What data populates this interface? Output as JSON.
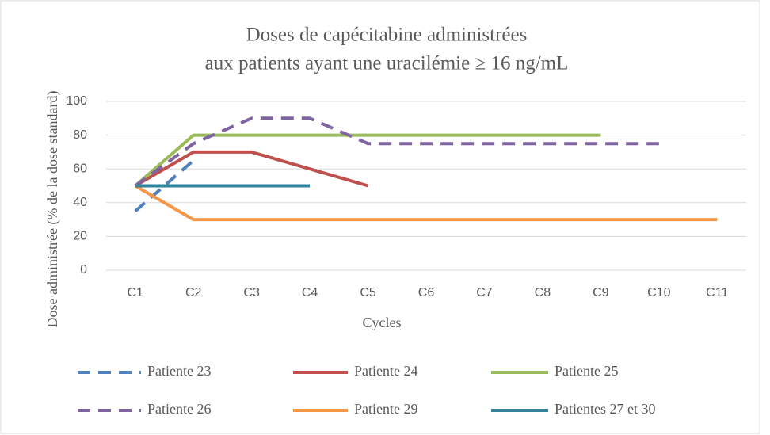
{
  "chart_data": {
    "type": "line",
    "title": [
      "Doses de capécitabine administrées",
      "aux patients ayant une uracilémie ≥  16 ng/mL"
    ],
    "x_label": "Cycles",
    "y_label": "Dose administrée (% de la dose standard)",
    "categories": [
      "C1",
      "C2",
      "C3",
      "C4",
      "C5",
      "C6",
      "C7",
      "C8",
      "C9",
      "C10",
      "C11"
    ],
    "series": [
      {
        "name": "Patiente 23",
        "color": "#4f81bd",
        "dashed": true,
        "values": [
          35,
          65,
          null,
          null,
          null,
          null,
          null,
          null,
          null,
          null,
          null
        ]
      },
      {
        "name": "Patiente 24",
        "color": "#c0504d",
        "dashed": false,
        "values": [
          50,
          70,
          70,
          60,
          50,
          null,
          null,
          null,
          null,
          null,
          null
        ]
      },
      {
        "name": "Patiente 25",
        "color": "#9bbb59",
        "dashed": false,
        "values": [
          50,
          80,
          80,
          80,
          80,
          80,
          80,
          80,
          80,
          null,
          null
        ]
      },
      {
        "name": "Patiente 26",
        "color": "#8064a2",
        "dashed": true,
        "values": [
          50,
          75,
          90,
          90,
          75,
          75,
          75,
          75,
          75,
          75,
          null
        ]
      },
      {
        "name": "Patiente 29",
        "color": "#f79646",
        "dashed": false,
        "values": [
          50,
          30,
          30,
          30,
          30,
          30,
          30,
          30,
          30,
          30,
          30
        ]
      },
      {
        "name": "Patientes 27 et 30",
        "color": "#31849b",
        "dashed": false,
        "values": [
          50,
          50,
          50,
          50,
          null,
          null,
          null,
          null,
          null,
          null,
          null
        ]
      }
    ],
    "ylim": [
      0,
      100
    ],
    "yticks": [
      0,
      20,
      40,
      60,
      80,
      100
    ],
    "grid": true,
    "legend": "bottom"
  }
}
